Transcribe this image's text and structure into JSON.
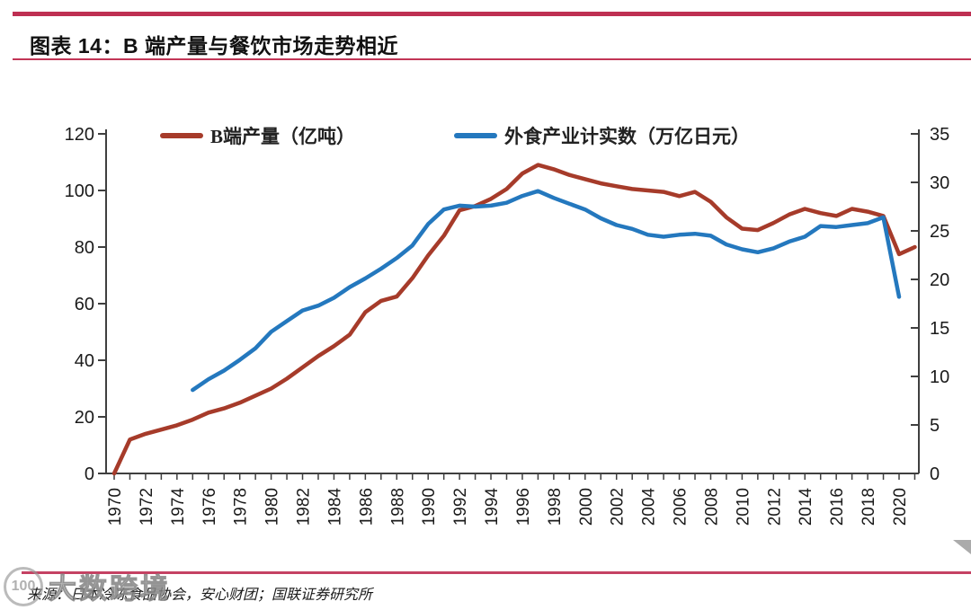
{
  "header": {
    "figure_label": "图表 14：B 端产量与餐饮市场走势相近"
  },
  "legend": [
    {
      "label": "B端产量（亿吨）",
      "color": "#A63B2A"
    },
    {
      "label": "外食产业计实数（万亿日元）",
      "color": "#2478BE"
    }
  ],
  "footer": {
    "source": "来源：日本冷冻食品协会，安心财团；国联证券研究所",
    "watermark_logo": "100",
    "watermark_text": "大数跨境"
  },
  "accent_colors": {
    "rule_red": "#BE2F52",
    "series_red": "#A63B2A",
    "series_blue": "#2478BE"
  },
  "chart_data": {
    "type": "line",
    "title": "B 端产量与餐饮市场走势相近",
    "x_axis": {
      "range": [
        1970,
        2021
      ],
      "minor_tick_every": 1,
      "labeled_ticks": [
        "1970",
        "1972",
        "1974",
        "1976",
        "1978",
        "1980",
        "1982",
        "1984",
        "1986",
        "1988",
        "1990",
        "1992",
        "1994",
        "1996",
        "1998",
        "2000",
        "2002",
        "2004",
        "2006",
        "2008",
        "2010",
        "2012",
        "2014",
        "2016",
        "2018",
        "2020"
      ]
    },
    "left_axis": {
      "label_unit": "亿吨",
      "range": [
        0,
        120
      ],
      "ticks": [
        0,
        20,
        40,
        60,
        80,
        100,
        120
      ]
    },
    "right_axis": {
      "label_unit": "万亿日元",
      "range": [
        0,
        35
      ],
      "ticks": [
        0,
        5,
        10,
        15,
        20,
        25,
        30,
        35
      ]
    },
    "grid": false,
    "legend_position": "top-inside",
    "series": [
      {
        "name": "B端产量（亿吨）",
        "axis": "left",
        "color": "#A63B2A",
        "start_year": 1970,
        "values": [
          0,
          12,
          14,
          15.5,
          17,
          19,
          21.5,
          23,
          25,
          27.5,
          30,
          33.5,
          37.5,
          41.5,
          45,
          49,
          57,
          61,
          62.5,
          69,
          77,
          84,
          93,
          94.5,
          97,
          100.5,
          106,
          109,
          107.5,
          105.5,
          104,
          102.5,
          101.5,
          100.5,
          100,
          99.5,
          98,
          99.5,
          96,
          90.5,
          86.5,
          86,
          88.5,
          91.5,
          93.5,
          92,
          91,
          93.5,
          92.5,
          91,
          77.5,
          80
        ]
      },
      {
        "name": "外食产业计实数（万亿日元）",
        "axis": "right",
        "color": "#2478BE",
        "start_year": 1975,
        "values": [
          8.6,
          9.7,
          10.6,
          11.7,
          12.9,
          14.6,
          15.7,
          16.8,
          17.3,
          18.1,
          19.2,
          20.1,
          21.1,
          22.2,
          23.5,
          25.7,
          27.2,
          27.6,
          27.5,
          27.6,
          27.9,
          28.6,
          29.1,
          28.4,
          27.8,
          27.2,
          26.3,
          25.6,
          25.2,
          24.6,
          24.4,
          24.6,
          24.7,
          24.5,
          23.6,
          23.1,
          22.8,
          23.2,
          23.9,
          24.4,
          25.5,
          25.4,
          25.6,
          25.8,
          26.4,
          18.2
        ]
      }
    ]
  }
}
